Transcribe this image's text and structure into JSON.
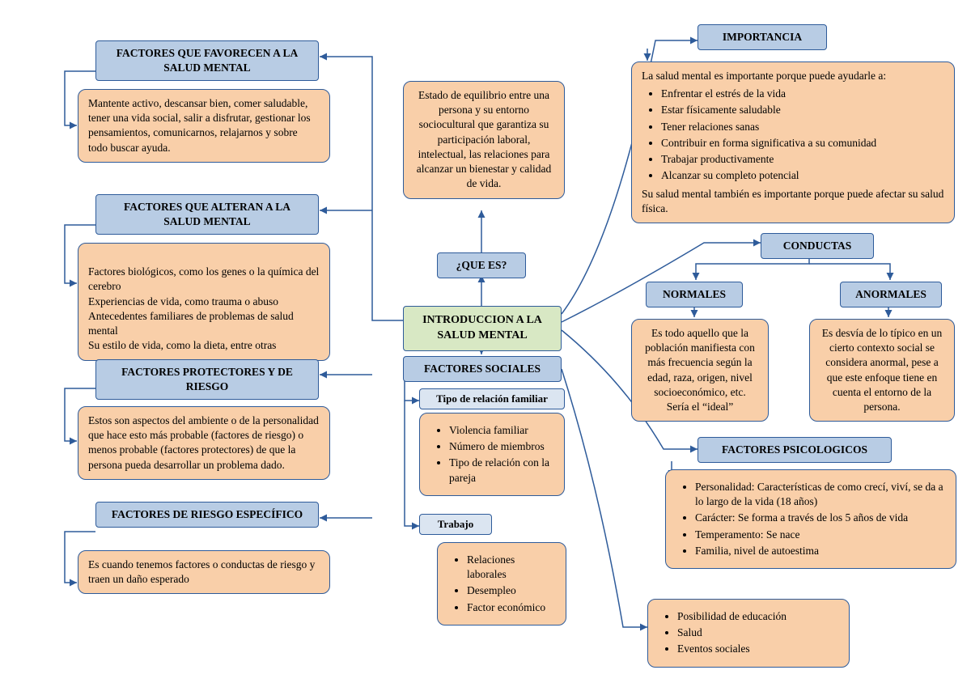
{
  "colors": {
    "border": "#2e5b9a",
    "header_bg": "#b8cce4",
    "subheader_bg": "#dbe5f1",
    "content_bg": "#f9cfa9",
    "central_bg": "#d8e8c4",
    "page_bg": "#ffffff"
  },
  "central": {
    "title": "INTRODUCCION A LA SALUD MENTAL"
  },
  "que_es": {
    "label": "¿QUE ES?",
    "text": "Estado de equilibrio entre una persona y su entorno sociocultural que garantiza su participación laboral, intelectual, las relaciones para alcanzar un bienestar y calidad de vida."
  },
  "importancia": {
    "label": "IMPORTANCIA",
    "intro": "La salud mental es importante porque puede ayudarle a:",
    "items": [
      "Enfrentar el estrés de la vida",
      "Estar físicamente saludable",
      "Tener relaciones sanas",
      "Contribuir en forma significativa a su comunidad",
      "Trabajar productivamente",
      "Alcanzar su completo potencial"
    ],
    "outro": "Su salud mental también es importante porque puede afectar su salud física."
  },
  "conductas": {
    "label": "CONDUCTAS",
    "normales": {
      "label": "NORMALES",
      "text": "Es todo aquello que la población manifiesta con más frecuencia según la edad, raza, origen, nivel socioeconómico, etc. Sería el “ideal”"
    },
    "anormales": {
      "label": "ANORMALES",
      "text": "Es desvía de lo típico en un cierto contexto social se considera anormal, pese a que este enfoque tiene en cuenta el entorno de la persona."
    }
  },
  "psicologicos": {
    "label": "FACTORES PSICOLOGICOS",
    "items": [
      "Personalidad: Características de como crecí, viví, se da a lo largo de la vida (18 años)",
      "Carácter: Se forma a través de los 5 años de vida",
      "Temperamento: Se nace",
      "Familia, nivel de autoestima"
    ]
  },
  "extra": {
    "items": [
      "Posibilidad de educación",
      "Salud",
      "Eventos sociales"
    ]
  },
  "sociales": {
    "label": "FACTORES SOCIALES",
    "familia": {
      "label": "Tipo de relación familiar",
      "items": [
        "Violencia familiar",
        "Número de miembros",
        "Tipo de relación con la pareja"
      ]
    },
    "trabajo": {
      "label": "Trabajo",
      "items": [
        "Relaciones laborales",
        "Desempleo",
        "Factor económico"
      ]
    }
  },
  "favorecen": {
    "label": "FACTORES QUE FAVORECEN A LA SALUD MENTAL",
    "text": "Mantente activo, descansar bien, comer saludable, tener una vida social, salir a disfrutar, gestionar los pensamientos, comunicarnos, relajarnos y sobre todo buscar ayuda."
  },
  "alteran": {
    "label": "FACTORES QUE ALTERAN A LA SALUD MENTAL",
    "text": "Factores biológicos, como los genes o la química del cerebro\nExperiencias de vida, como trauma o abuso\nAntecedentes familiares de problemas de salud mental\nSu estilo de vida, como la dieta, entre otras"
  },
  "protectores": {
    "label": "FACTORES PROTECTORES Y DE RIESGO",
    "text": "Estos son aspectos del ambiente o de la personalidad que hace esto más probable (factores de riesgo) o menos probable (factores protectores) de que la persona pueda desarrollar un problema dado."
  },
  "especifico": {
    "label": "FACTORES DE RIESGO ESPECÍFICO",
    "text": "Es cuando tenemos factores o conductas de riesgo y traen un daño esperado"
  }
}
